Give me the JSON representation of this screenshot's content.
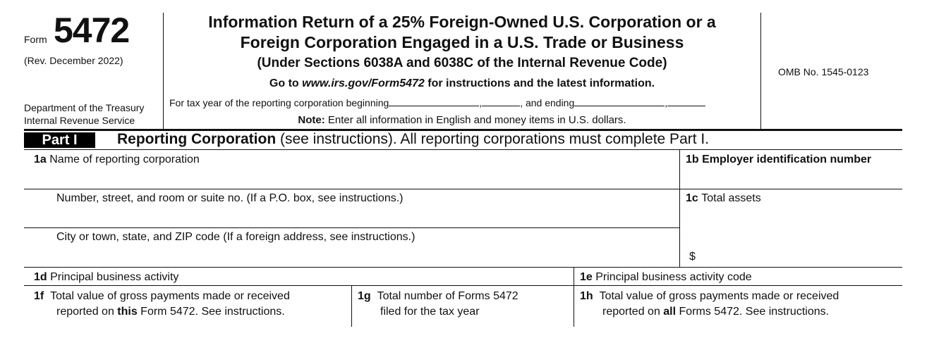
{
  "header": {
    "form_prefix": "Form",
    "form_number": "5472",
    "revision": "(Rev. December 2022)",
    "department": "Department of the Treasury",
    "service": "Internal Revenue Service",
    "title_line1": "Information Return of a 25% Foreign-Owned U.S. Corporation or a",
    "title_line2": "Foreign Corporation Engaged in a U.S. Trade or Business",
    "title_line3": "(Under Sections 6038A and 6038C of the Internal Revenue Code)",
    "goto_prefix": "Go to ",
    "goto_url": "www.irs.gov/Form5472",
    "goto_suffix": " for instructions and the latest information.",
    "tax_year_prefix": "For tax year of the reporting corporation beginning",
    "tax_year_mid": ", and ending",
    "note_label": "Note:",
    "note_text": " Enter all information in English and money items in U.S. dollars.",
    "omb": "OMB No. 1545-0123"
  },
  "part1": {
    "badge": "Part I",
    "title": "Reporting Corporation",
    "title_rest": " (see instructions). All reporting corporations must complete Part I."
  },
  "fields": {
    "f1a_num": "1a",
    "f1a_label": "Name of reporting corporation",
    "f1b_num": "1b",
    "f1b_label": "Employer identification number",
    "street_label": "Number, street, and room or suite no. (If a P.O. box, see instructions.)",
    "f1c_num": "1c",
    "f1c_label": "Total assets",
    "city_label": "City or town, state, and ZIP code (If a foreign address, see instructions.)",
    "currency": "$",
    "f1d_num": "1d",
    "f1d_label": "Principal business activity",
    "f1e_num": "1e",
    "f1e_label": "Principal business activity code",
    "f1f_num": "1f",
    "f1f_line1": "Total value of gross payments made or received",
    "f1f_line2_a": "reported on ",
    "f1f_line2_b": "this",
    "f1f_line2_c": " Form 5472. See instructions.",
    "f1g_num": "1g",
    "f1g_line1": "Total number of Forms 5472",
    "f1g_line2": "filed for the tax year",
    "f1h_num": "1h",
    "f1h_line1": "Total value of gross payments made or received",
    "f1h_line2_a": "reported on ",
    "f1h_line2_b": "all",
    "f1h_line2_c": " Forms 5472. See instructions."
  }
}
